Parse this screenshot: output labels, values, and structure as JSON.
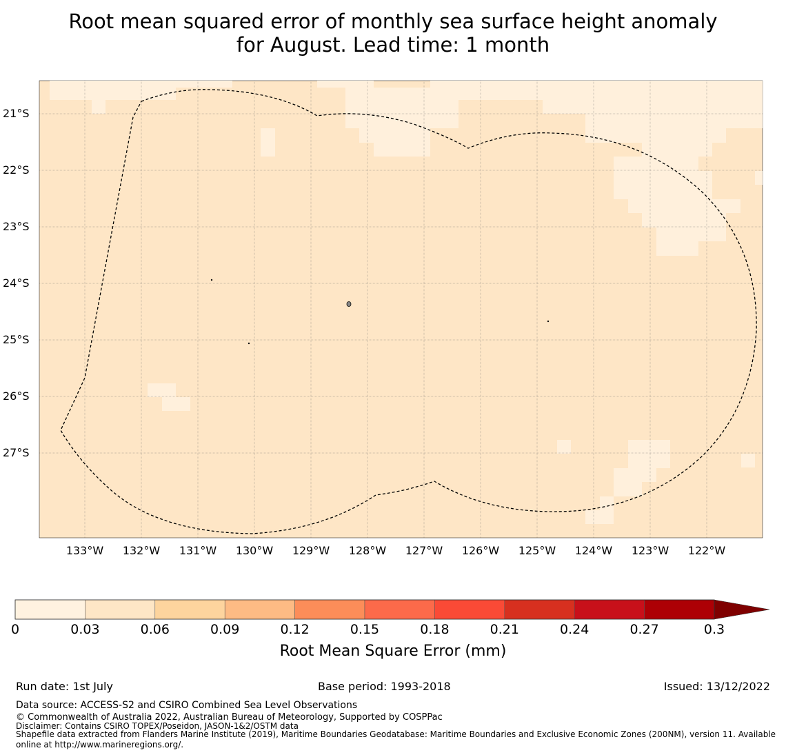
{
  "title_line1": "Root mean squared error of monthly sea surface height anomaly",
  "title_line2": "for August. Lead time: 1 month",
  "map": {
    "lat_labels": [
      "21°S",
      "22°S",
      "23°S",
      "24°S",
      "25°S",
      "26°S",
      "27°S"
    ],
    "lon_labels": [
      "133°W",
      "132°W",
      "131°W",
      "130°W",
      "129°W",
      "128°W",
      "127°W",
      "126°W",
      "125°W",
      "124°W",
      "123°W",
      "122°W"
    ],
    "colors": {
      "low": "#fff0dc",
      "mid": "#fee6c6",
      "line": "#000000"
    }
  },
  "colorbar": {
    "label": "Root Mean Square Error (mm)",
    "ticks": [
      "0",
      "0.03",
      "0.06",
      "0.09",
      "0.12",
      "0.15",
      "0.18",
      "0.21",
      "0.24",
      "0.27",
      "0.3"
    ],
    "colors": [
      "#fff2e0",
      "#fee6c6",
      "#fdd49e",
      "#fdbb84",
      "#fc8d59",
      "#fc6a4a",
      "#fa4a36",
      "#d7301f",
      "#c8101a",
      "#ad0005"
    ],
    "extend_color": "#7f0000"
  },
  "footer": {
    "run_date": "Run date: 1st July",
    "base_period": "Base period: 1993-2018",
    "issued": "Issued: 13/12/2022",
    "data_source": "Data source: ACCESS-S2 and CSIRO Combined Sea Level Observations",
    "copyright": "© Commonwealth of Australia 2022, Australian Bureau of Meteorology, Supported by COSPPac",
    "disclaimer": "Disclaimer: Contains CSIRO TOPEX/Poseidon, JASON-1&2/OSTM data",
    "shapefile_line1": "Shapefile data extracted from Flanders Marine Institute (2019), Maritime Boundaries Geodatabase: Maritime Boundaries and Exclusive Economic Zones (200NM), version 11. Available",
    "shapefile_line2": "online at http://www.marineregions.org/."
  }
}
